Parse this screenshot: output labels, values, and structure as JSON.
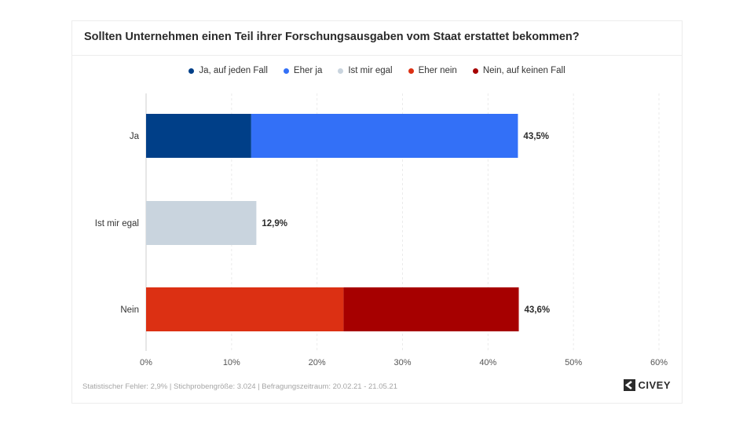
{
  "chart_data": {
    "type": "bar",
    "title": "Sollten Unternehmen einen Teil ihrer Forschungsausgaben vom Staat erstattet bekommen?",
    "categories": [
      "Ja",
      "Ist mir egal",
      "Nein"
    ],
    "series": [
      {
        "name": "Ja, auf jeden Fall",
        "color": "#003f88",
        "values": [
          12.3,
          0,
          0
        ]
      },
      {
        "name": "Eher ja",
        "color": "#3370f7",
        "values": [
          31.2,
          0,
          0
        ]
      },
      {
        "name": "Ist mir egal",
        "color": "#c9d4de",
        "values": [
          0,
          12.9,
          0
        ]
      },
      {
        "name": "Eher nein",
        "color": "#dc3013",
        "values": [
          0,
          0,
          23.1
        ]
      },
      {
        "name": "Nein, auf keinen Fall",
        "color": "#a60000",
        "values": [
          0,
          0,
          20.5
        ]
      }
    ],
    "totals": [
      "43,5%",
      "12,9%",
      "43,6%"
    ],
    "x_ticks": [
      "0%",
      "10%",
      "20%",
      "30%",
      "40%",
      "50%",
      "60%"
    ],
    "xlim": [
      0,
      60
    ],
    "orientation": "horizontal",
    "stacked": true,
    "grid": true,
    "legend_position": "top"
  },
  "footer": {
    "text": "Statistischer Fehler: 2,9% | Stichprobengröße: 3.024 | Befragungszeitraum: 20.02.21 - 21.05.21"
  },
  "logo": {
    "text": "CIVEY"
  }
}
